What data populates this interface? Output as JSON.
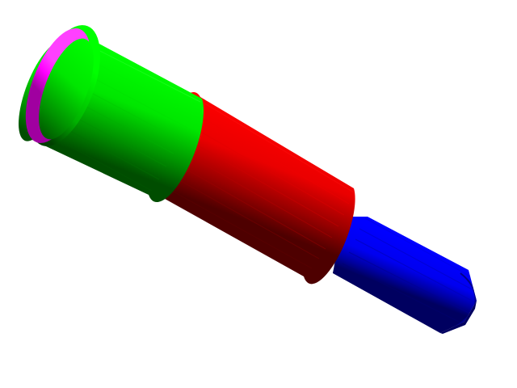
{
  "scene": {
    "background": "#ffffff",
    "parts": [
      {
        "name": "end-cap",
        "color": "#ff00ff",
        "shade": "#a000a0"
      },
      {
        "name": "green-sleeve",
        "color": "#00ff00",
        "shade": "#005000"
      },
      {
        "name": "red-sleeve",
        "color": "#ff0000",
        "shade": "#500000"
      },
      {
        "name": "blue-shaft",
        "color": "#0000ff",
        "shade": "#000055"
      }
    ]
  }
}
